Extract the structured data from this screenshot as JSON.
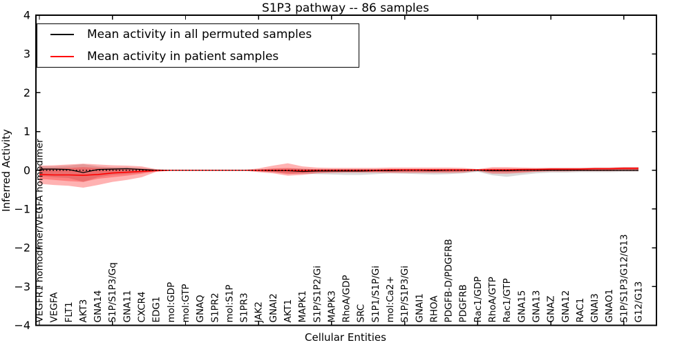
{
  "figure": {
    "background": "#ffffff"
  },
  "chart_data": {
    "type": "line",
    "title": "S1P3 pathway -- 86 samples",
    "xlabel": "Cellular Entities",
    "ylabel": "Inferred Activity",
    "ylim": [
      -4,
      4
    ],
    "ytick_values": [
      4,
      3,
      2,
      1,
      0,
      -1,
      -2,
      -3,
      -4
    ],
    "ytick_labels": [
      "4",
      "3",
      "2",
      "1",
      "0",
      "−1",
      "−2",
      "−3",
      "−4"
    ],
    "xtick_indices": [
      0,
      5,
      10,
      15,
      20,
      25,
      30,
      35,
      40
    ],
    "grid": false,
    "legend_position": "upper left",
    "categories": [
      "VEGFR1 homodimer/VEGFA homodimer",
      "VEGFA",
      "FLT1",
      "AKT3",
      "GNA14",
      "S1P/S1P3/Gq",
      "GNA11",
      "CXCR4",
      "EDG1",
      "mol:GDP",
      "mol:GTP",
      "GNAQ",
      "S1PR2",
      "mol:S1P",
      "S1PR3",
      "JAK2",
      "GNAI2",
      "AKT1",
      "MAPK1",
      "S1P/S1P2/Gi",
      "MAPK3",
      "RhoA/GDP",
      "SRC",
      "S1P1/S1P/Gi",
      "mol:Ca2+",
      "S1P/S1P3/Gi",
      "GNAI1",
      "RHOA",
      "PDGFB-D/PDGFRB",
      "PDGFRB",
      "Rac1/GDP",
      "RhoA/GTP",
      "Rac1/GTP",
      "GNA15",
      "GNA13",
      "GNAZ",
      "GNA12",
      "RAC1",
      "GNAI3",
      "GNAO1",
      "S1P/S1P3/G12/G13",
      "G12/G13"
    ],
    "series": [
      {
        "name": "Mean activity in all permuted samples",
        "color": "#000000",
        "style": "solid",
        "values": [
          0.03,
          0.03,
          0.02,
          -0.06,
          0.02,
          0.03,
          0.04,
          0.02,
          0,
          0,
          0,
          0,
          0,
          0,
          0,
          0,
          -0.01,
          -0.01,
          -0.03,
          -0.02,
          -0.02,
          -0.02,
          -0.02,
          -0.01,
          -0.01,
          0,
          0,
          -0.01,
          0,
          0,
          0,
          -0.01,
          -0.01,
          0,
          0,
          0,
          0,
          0,
          0,
          0,
          0,
          0
        ]
      },
      {
        "name": "Mean activity in patient samples",
        "color": "#ff0000",
        "style": "solid",
        "values": [
          -0.11,
          -0.12,
          -0.12,
          -0.13,
          -0.11,
          -0.07,
          -0.05,
          -0.03,
          -0.01,
          0,
          0,
          0,
          0,
          0,
          0,
          0,
          0,
          0,
          -0.01,
          0,
          0,
          0,
          0,
          0,
          0.01,
          0.01,
          0.01,
          0.01,
          0.01,
          0.01,
          0.01,
          0.01,
          0.01,
          0.02,
          0.02,
          0.03,
          0.03,
          0.03,
          0.04,
          0.04,
          0.05,
          0.05
        ]
      }
    ],
    "zero_line": {
      "y": 0,
      "color": "#000000",
      "style": "dotted"
    },
    "bands": [
      {
        "name": "permuted-sample-range",
        "color": "rgba(0,0,0,0.15)",
        "hi": [
          0.1,
          0.1,
          0.12,
          0.16,
          0.1,
          0.08,
          0.08,
          0.06,
          0.02,
          0.01,
          0.01,
          0.01,
          0.01,
          0.01,
          0.01,
          0.02,
          0.04,
          0.05,
          0.04,
          0.03,
          0.03,
          0.03,
          0.03,
          0.03,
          0.03,
          0.03,
          0.03,
          0.03,
          0.03,
          0.02,
          0.02,
          0.04,
          0.04,
          0.04,
          0.05,
          0.06,
          0.06,
          0.06,
          0.07,
          0.07,
          0.08,
          0.08
        ],
        "lo": [
          -0.15,
          -0.18,
          -0.2,
          -0.3,
          -0.18,
          -0.12,
          -0.1,
          -0.07,
          -0.02,
          -0.01,
          -0.01,
          -0.01,
          -0.01,
          -0.01,
          -0.01,
          -0.03,
          -0.05,
          -0.08,
          -0.09,
          -0.1,
          -0.11,
          -0.12,
          -0.12,
          -0.1,
          -0.08,
          -0.09,
          -0.1,
          -0.11,
          -0.1,
          -0.08,
          -0.04,
          -0.13,
          -0.17,
          -0.12,
          -0.08,
          -0.06,
          -0.06,
          -0.05,
          -0.05,
          -0.05,
          -0.04,
          -0.04
        ]
      },
      {
        "name": "patient-sample-range-outer",
        "color": "rgba(255,0,0,0.30)",
        "hi": [
          0.12,
          0.13,
          0.15,
          0.17,
          0.15,
          0.13,
          0.12,
          0.1,
          0.03,
          0.01,
          0.01,
          0.01,
          0.01,
          0.01,
          0.01,
          0.05,
          0.12,
          0.18,
          0.1,
          0.07,
          0.06,
          0.06,
          0.06,
          0.06,
          0.07,
          0.07,
          0.07,
          0.07,
          0.07,
          0.06,
          0.03,
          0.08,
          0.08,
          0.07,
          0.06,
          0.06,
          0.06,
          0.06,
          0.07,
          0.07,
          0.08,
          0.08
        ],
        "lo": [
          -0.35,
          -0.38,
          -0.4,
          -0.45,
          -0.38,
          -0.3,
          -0.25,
          -0.18,
          -0.04,
          -0.01,
          -0.01,
          -0.01,
          -0.01,
          -0.01,
          -0.01,
          -0.05,
          -0.08,
          -0.14,
          -0.12,
          -0.08,
          -0.07,
          -0.06,
          -0.06,
          -0.06,
          -0.07,
          -0.07,
          -0.07,
          -0.07,
          -0.07,
          -0.06,
          -0.02,
          -0.09,
          -0.09,
          -0.07,
          -0.04,
          -0.03,
          -0.03,
          -0.02,
          -0.02,
          -0.02,
          -0.01,
          -0.01
        ]
      },
      {
        "name": "patient-sample-range-inner",
        "color": "rgba(255,0,0,0.28)",
        "hi": [
          0.05,
          0.05,
          0.06,
          0.08,
          0.06,
          0.05,
          0.05,
          0.04,
          0.02,
          0.005,
          0.005,
          0.005,
          0.005,
          0.005,
          0.005,
          0.02,
          0.05,
          0.06,
          0.04,
          0.03,
          0.03,
          0.03,
          0.03,
          0.03,
          0.03,
          0.03,
          0.03,
          0.03,
          0.03,
          0.03,
          0.02,
          0.04,
          0.04,
          0.04,
          0.04,
          0.04,
          0.04,
          0.04,
          0.05,
          0.05,
          0.06,
          0.06
        ],
        "lo": [
          -0.22,
          -0.25,
          -0.28,
          -0.3,
          -0.22,
          -0.18,
          -0.14,
          -0.09,
          -0.03,
          -0.005,
          -0.005,
          -0.005,
          -0.005,
          -0.005,
          -0.005,
          -0.03,
          -0.05,
          -0.1,
          -0.08,
          -0.05,
          -0.04,
          -0.04,
          -0.04,
          -0.04,
          -0.04,
          -0.04,
          -0.04,
          -0.04,
          -0.04,
          -0.03,
          -0.01,
          -0.05,
          -0.05,
          -0.04,
          -0.03,
          -0.02,
          -0.02,
          -0.02,
          -0.02,
          -0.02,
          -0.02,
          -0.02
        ]
      }
    ]
  }
}
